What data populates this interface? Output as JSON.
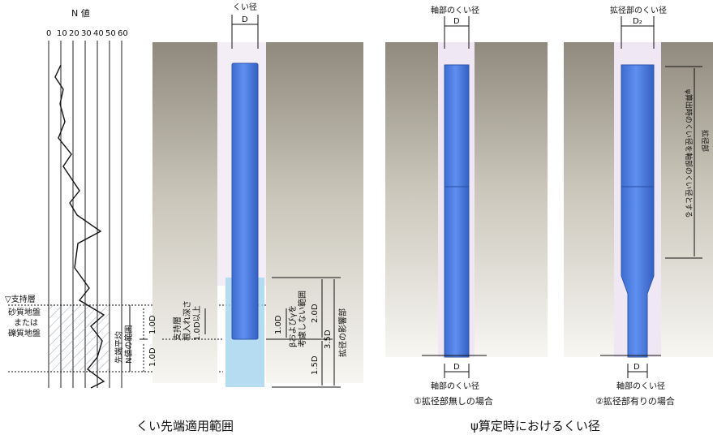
{
  "left": {
    "n_value_title": "N 値",
    "n_ticks": [
      "0",
      "10",
      "20",
      "30",
      "40",
      "50",
      "60"
    ],
    "support_layer": "▽支持層",
    "soil_type": [
      "砂質地盤",
      "または",
      "礫質地盤"
    ],
    "pile_diameter_label": "くい径",
    "D": "D",
    "avg_n_range": [
      "先端平均",
      "N値の範囲"
    ],
    "embed_depth": [
      "支持層",
      "根入れ深さ",
      "1.0D以上"
    ],
    "one_d": "1.0D",
    "beta_note": [
      "βおよびγを",
      "考慮しない範囲"
    ],
    "two_d": "2.0D",
    "one_five_d": "1.5D",
    "three_five_d": "3.5D",
    "tip_influence": "拡径の影響部",
    "caption": "くい先端適用範囲"
  },
  "right": {
    "shaft_diameter_label": "軸部のくい径",
    "enlarged_diameter_label": "拡径部のくい径",
    "D": "D",
    "D2": "D₂",
    "bottom_shaft_label": "軸部のくい径",
    "case1": "①拡径部無しの場合",
    "case2": "②拡径部有りの場合",
    "vertical_note": [
      "ψ算出時のくい径を軸部のくい径とする",
      "拡径部"
    ],
    "caption": "ψ算定時におけるくい径"
  },
  "colors": {
    "pile": "#4a78d8",
    "pile_dark": "#2f55b0",
    "pile_light": "#aeccf0",
    "ground_top": "#8a8579",
    "ground_bottom": "#f2f0ea",
    "casing": "#e8dff0"
  }
}
